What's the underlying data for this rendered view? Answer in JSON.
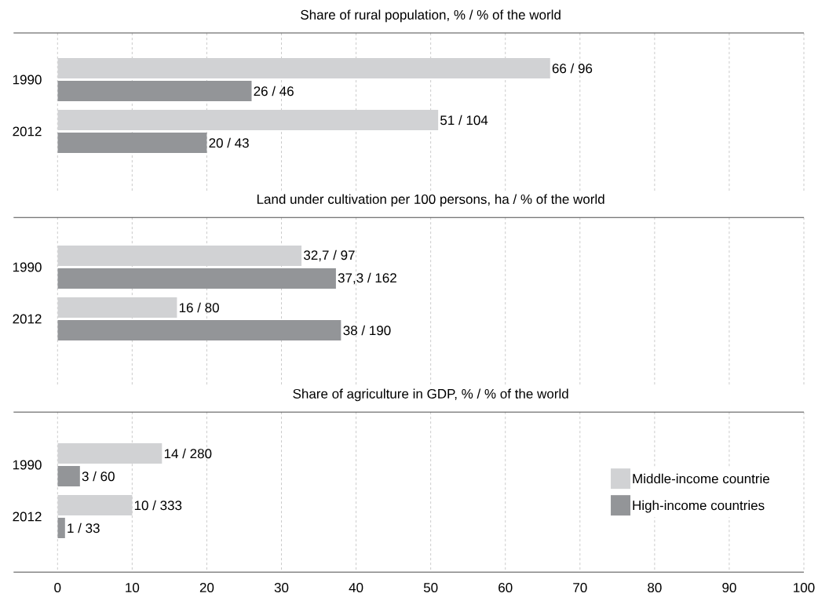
{
  "chart_data": [
    {
      "type": "bar",
      "orientation": "horizontal",
      "title": "Share of rural population, % / % of the world",
      "categories": [
        "1990",
        "2012"
      ],
      "series": [
        {
          "color": "#d1d2d4",
          "values": [
            66,
            51
          ],
          "value_labels": [
            "66 / 96",
            "51 / 104"
          ]
        },
        {
          "color": "#939598",
          "values": [
            26,
            20
          ],
          "value_labels": [
            "26 / 46",
            "20 / 43"
          ]
        }
      ],
      "xlim": [
        0,
        100
      ],
      "xticks": [
        0,
        10,
        20,
        30,
        40,
        50,
        60,
        70,
        80,
        90,
        100
      ],
      "grid": "x",
      "tick_labels": "y"
    },
    {
      "type": "bar",
      "orientation": "horizontal",
      "title": "Land under cultivation per 100 persons, ha / % of the world",
      "categories": [
        "1990",
        "2012"
      ],
      "series": [
        {
          "color": "#d1d2d4",
          "values": [
            32.7,
            16
          ],
          "value_labels": [
            "32,7 / 97",
            "16 / 80"
          ]
        },
        {
          "color": "#939598",
          "values": [
            37.3,
            38
          ],
          "value_labels": [
            "37,3 / 162",
            "38 / 190"
          ]
        }
      ],
      "xlim": [
        0,
        100
      ],
      "xticks": [
        0,
        10,
        20,
        30,
        40,
        50,
        60,
        70,
        80,
        90,
        100
      ],
      "grid": "x",
      "tick_labels": "y"
    },
    {
      "type": "bar",
      "orientation": "horizontal",
      "title": "Share of agriculture in GDP, % / % of the world",
      "categories": [
        "1990",
        "2012"
      ],
      "series": [
        {
          "name": "Middle-income countrie",
          "color": "#d1d2d4",
          "values": [
            14,
            10
          ],
          "value_labels": [
            "14 / 280",
            "10 / 333"
          ]
        },
        {
          "name": "High-income countries",
          "color": "#939598",
          "values": [
            3,
            1
          ],
          "value_labels": [
            "3 / 60",
            "1 / 33"
          ]
        }
      ],
      "xlim": [
        0,
        100
      ],
      "xticks": [
        0,
        10,
        20,
        30,
        40,
        50,
        60,
        70,
        80,
        90,
        100
      ],
      "grid": "x",
      "legend": "right"
    }
  ]
}
